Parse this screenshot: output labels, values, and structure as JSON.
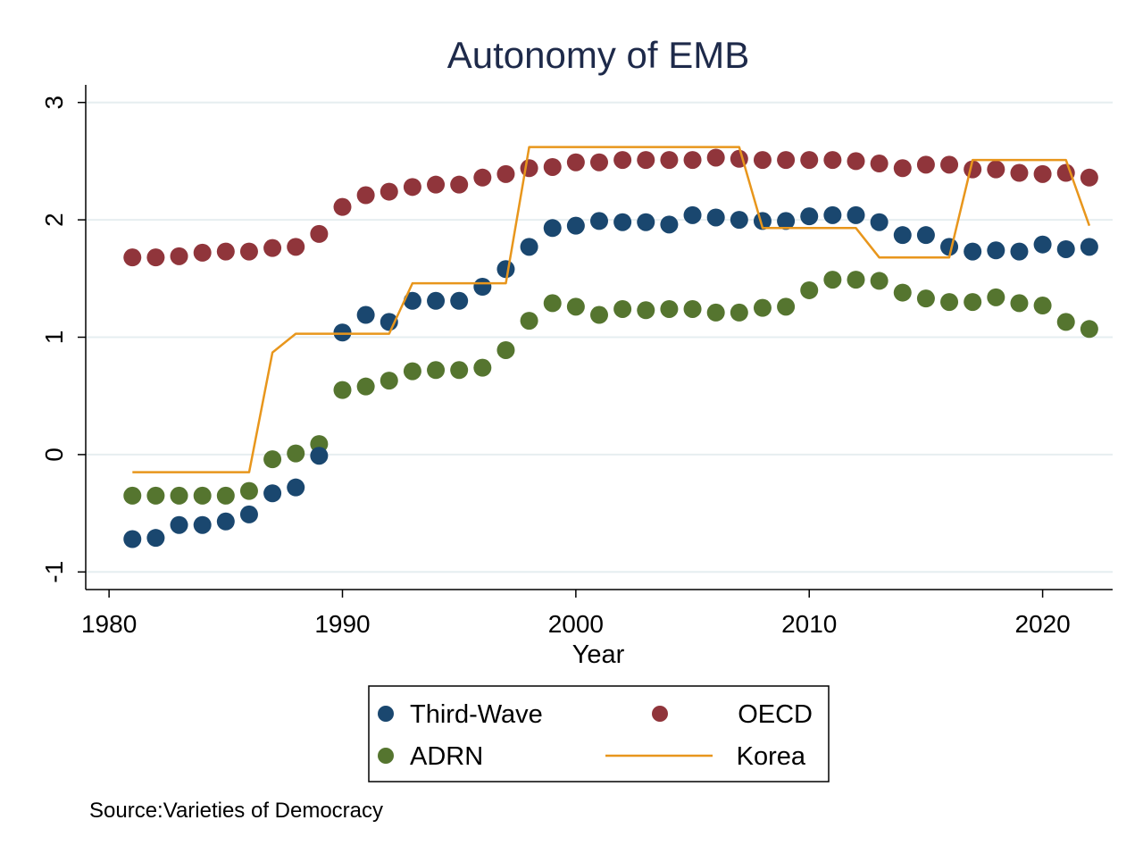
{
  "chart_data": {
    "type": "scatter",
    "title": "Autonomy of EMB",
    "xlabel": "Year",
    "ylabel": "",
    "xlim": [
      1979,
      2023
    ],
    "ylim": [
      -1.15,
      3.15
    ],
    "xticks": [
      1980,
      1990,
      2000,
      2010,
      2020
    ],
    "yticks": [
      -1,
      0,
      1,
      2,
      3
    ],
    "grid": "horizontal",
    "legend_position": "bottom",
    "source": "Source:Varieties of Democracy",
    "x": [
      1981,
      1982,
      1983,
      1984,
      1985,
      1986,
      1987,
      1988,
      1989,
      1990,
      1991,
      1992,
      1993,
      1994,
      1995,
      1996,
      1997,
      1998,
      1999,
      2000,
      2001,
      2002,
      2003,
      2004,
      2005,
      2006,
      2007,
      2008,
      2009,
      2010,
      2011,
      2012,
      2013,
      2014,
      2015,
      2016,
      2017,
      2018,
      2019,
      2020,
      2021,
      2022
    ],
    "series": [
      {
        "name": "Third-Wave",
        "style": "marker",
        "color": "#1a476f",
        "values": [
          -0.72,
          -0.71,
          -0.6,
          -0.6,
          -0.57,
          -0.51,
          -0.33,
          -0.28,
          -0.01,
          1.04,
          1.19,
          1.13,
          1.31,
          1.31,
          1.31,
          1.43,
          1.58,
          1.77,
          1.93,
          1.95,
          1.99,
          1.98,
          1.98,
          1.96,
          2.04,
          2.02,
          2.0,
          1.99,
          1.99,
          2.03,
          2.04,
          2.04,
          1.98,
          1.87,
          1.87,
          1.77,
          1.73,
          1.74,
          1.73,
          1.79,
          1.75,
          1.77
        ]
      },
      {
        "name": "OECD",
        "style": "marker",
        "color": "#90353b",
        "values": [
          1.68,
          1.68,
          1.69,
          1.72,
          1.73,
          1.73,
          1.76,
          1.77,
          1.88,
          2.11,
          2.21,
          2.24,
          2.28,
          2.3,
          2.3,
          2.36,
          2.39,
          2.44,
          2.45,
          2.49,
          2.49,
          2.51,
          2.51,
          2.51,
          2.51,
          2.53,
          2.52,
          2.51,
          2.51,
          2.51,
          2.51,
          2.5,
          2.48,
          2.44,
          2.47,
          2.47,
          2.43,
          2.43,
          2.4,
          2.39,
          2.4,
          2.36
        ]
      },
      {
        "name": "ADRN",
        "style": "marker",
        "color": "#55752f",
        "values": [
          -0.35,
          -0.35,
          -0.35,
          -0.35,
          -0.35,
          -0.31,
          -0.04,
          0.01,
          0.09,
          0.55,
          0.58,
          0.63,
          0.71,
          0.72,
          0.72,
          0.74,
          0.89,
          1.14,
          1.29,
          1.26,
          1.19,
          1.24,
          1.23,
          1.24,
          1.24,
          1.21,
          1.21,
          1.25,
          1.26,
          1.4,
          1.49,
          1.49,
          1.48,
          1.38,
          1.33,
          1.3,
          1.3,
          1.34,
          1.29,
          1.27,
          1.13,
          1.07
        ]
      },
      {
        "name": "Korea",
        "style": "line",
        "color": "#e8961c",
        "values": [
          -0.15,
          -0.15,
          -0.15,
          -0.15,
          -0.15,
          -0.15,
          0.87,
          1.03,
          1.03,
          1.03,
          1.03,
          1.03,
          1.46,
          1.46,
          1.46,
          1.46,
          1.46,
          2.62,
          2.62,
          2.62,
          2.62,
          2.62,
          2.62,
          2.62,
          2.62,
          2.62,
          2.62,
          1.93,
          1.93,
          1.93,
          1.93,
          1.93,
          1.68,
          1.68,
          1.68,
          1.68,
          2.51,
          2.51,
          2.51,
          2.51,
          2.51,
          1.95
        ]
      }
    ]
  }
}
